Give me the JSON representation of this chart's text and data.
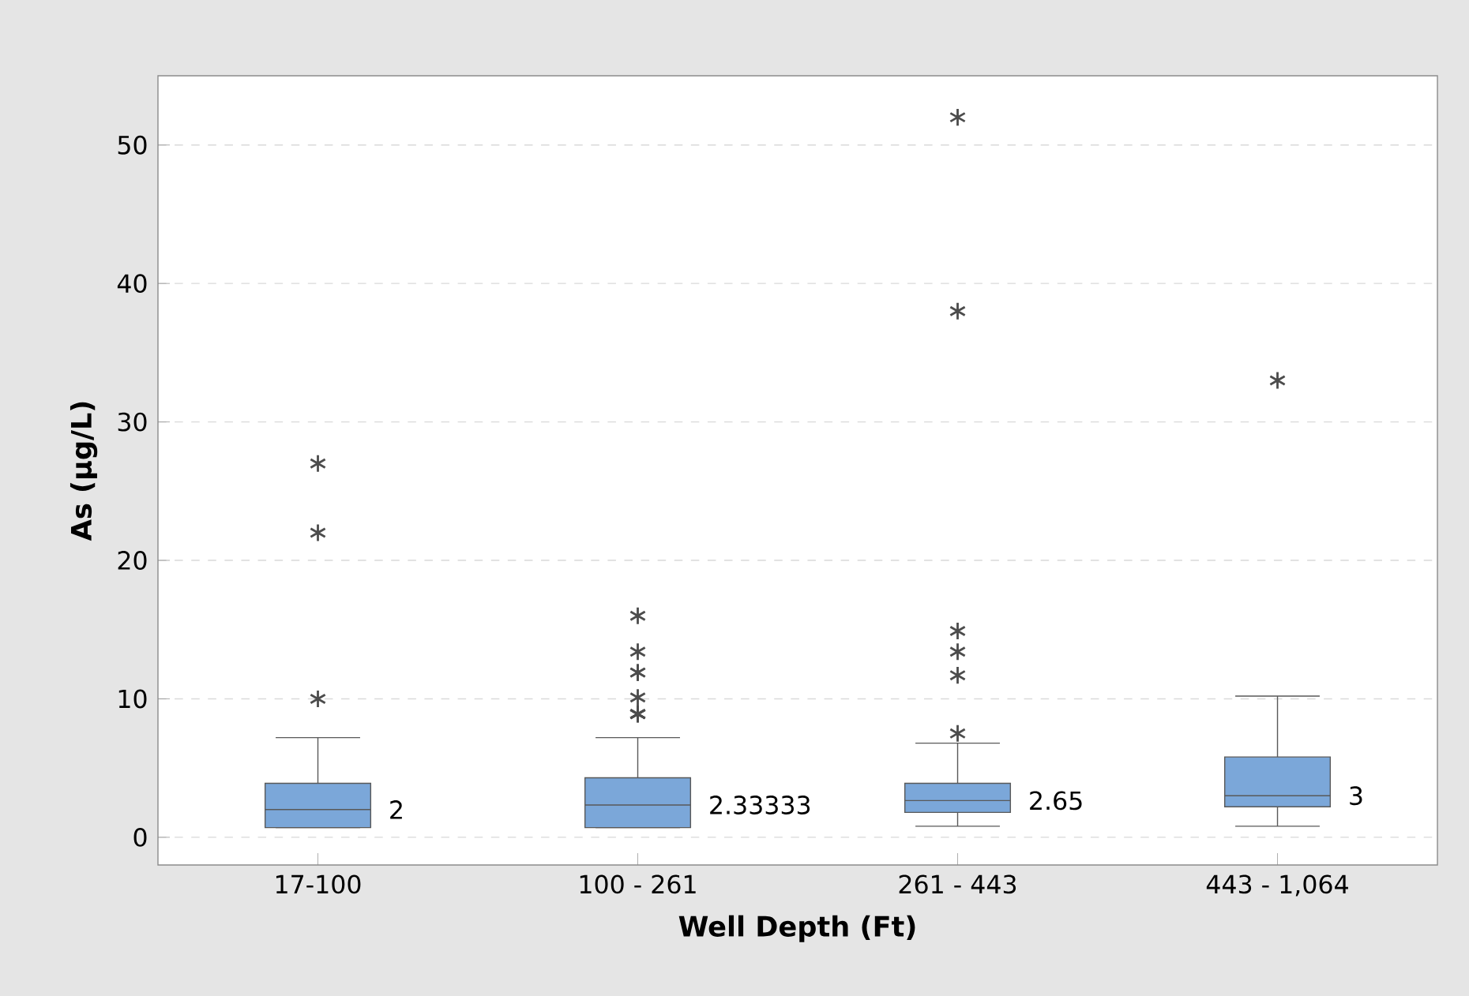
{
  "chart_data": {
    "type": "box",
    "xlabel": "Well Depth (Ft)",
    "ylabel": "As (µg/L)",
    "categories": [
      "17-100",
      "100 - 261",
      "261 - 443",
      "443 - 1,064"
    ],
    "boxes": [
      {
        "low": 0.7,
        "q1": 0.7,
        "median": 2,
        "q3": 3.9,
        "high": 7.2,
        "outliers": [
          10,
          22,
          27
        ]
      },
      {
        "low": 0.7,
        "q1": 0.7,
        "median": 2.33333,
        "q3": 4.3,
        "high": 7.2,
        "outliers": [
          8.9,
          8.9,
          8.9,
          8.9,
          10.1,
          11.9,
          11.9,
          13.4,
          16
        ]
      },
      {
        "low": 0.8,
        "q1": 1.8,
        "median": 2.65,
        "q3": 3.9,
        "high": 6.8,
        "outliers": [
          7.5,
          11.7,
          13.4,
          14.9,
          38,
          52
        ]
      },
      {
        "low": 0.8,
        "q1": 2.2,
        "median": 3,
        "q3": 5.8,
        "high": 10.2,
        "outliers": [
          33
        ]
      }
    ],
    "color": "#7ba7d9",
    "marker": "star",
    "grid": "y",
    "ylim": [
      -2,
      55
    ],
    "yticks": [
      0,
      10,
      20,
      30,
      40,
      50
    ],
    "annotations": [
      "2",
      "2.33333",
      "2.65",
      "3"
    ]
  }
}
